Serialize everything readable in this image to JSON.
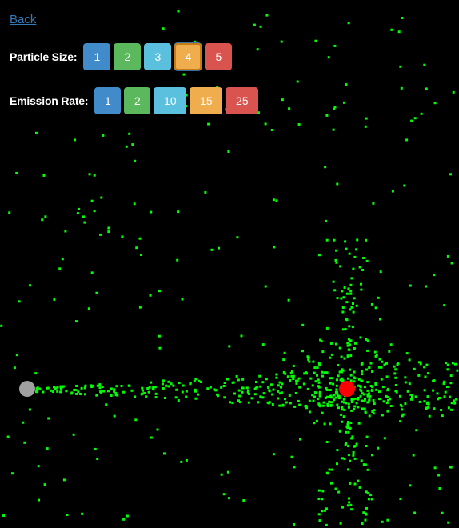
{
  "nav": {
    "back_label": "Back"
  },
  "particle_size": {
    "label": "Particle Size:",
    "options": [
      {
        "label": "1",
        "color": "#428bca"
      },
      {
        "label": "2",
        "color": "#5cb85c"
      },
      {
        "label": "3",
        "color": "#5bc0de"
      },
      {
        "label": "4",
        "color": "#f0ad4e"
      },
      {
        "label": "5",
        "color": "#d9534f"
      }
    ],
    "selected": "4"
  },
  "emission_rate": {
    "label": "Emission Rate:",
    "options": [
      {
        "label": "1",
        "color": "#428bca"
      },
      {
        "label": "2",
        "color": "#5cb85c"
      },
      {
        "label": "10",
        "color": "#5bc0de"
      },
      {
        "label": "15",
        "color": "#f0ad4e"
      },
      {
        "label": "25",
        "color": "#d9534f"
      }
    ]
  },
  "simulation": {
    "particle_color": "#00ff00",
    "emitter_color": "#a0a0a0",
    "attractor_color": "#ff0000"
  }
}
